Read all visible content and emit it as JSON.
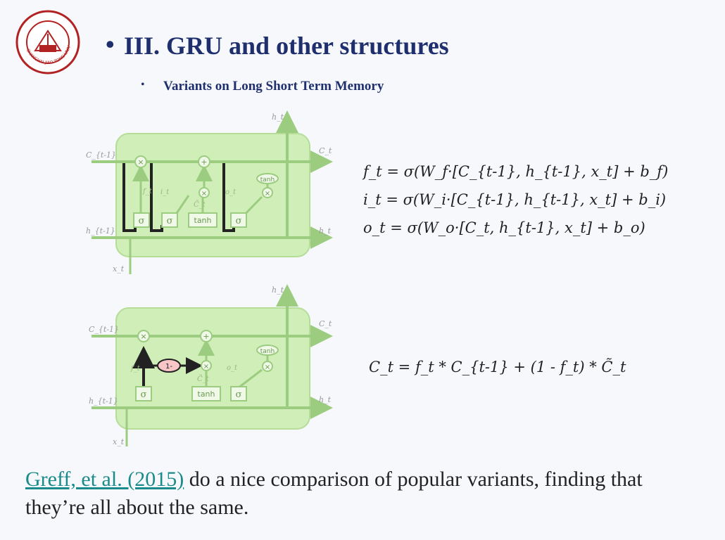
{
  "slide": {
    "title": "III. GRU and other structures",
    "bullet_1": "Variants on Long Short Term Memory",
    "title_bullet": "•",
    "sub_bullet": "•"
  },
  "logo": {
    "institution_text": "SHANGHAI JIAO TONG UNIVERSITY",
    "year_text": "1896"
  },
  "diagram_labels": {
    "c_prev": "C_{t-1}",
    "c_t": "C_t",
    "h_t": "h_t",
    "h_prev": "h_{t-1}",
    "x_t": "x_t",
    "f_t": "f_t",
    "i_t": "i_t",
    "o_t": "o_t",
    "c_tilde": "C̃_t",
    "sigma": "σ",
    "tanh": "tanh",
    "one_minus": "1-"
  },
  "equations": {
    "f": "f_t = σ(W_f·[C_{t-1}, h_{t-1}, x_t] + b_f)",
    "i": "i_t = σ(W_i·[C_{t-1}, h_{t-1}, x_t] + b_i)",
    "o": "o_t = σ(W_o·[C_t, h_{t-1}, x_t] + b_o)",
    "c": "C_t = f_t * C_{t-1} + (1 - f_t) * C̃_t"
  },
  "footer": {
    "link_text": "Greff, et al. (2015)",
    "rest_text": " do a nice comparison of popular variants, finding that they’re all about the same."
  },
  "colors": {
    "title": "#1f2f6e",
    "cell_fill": "#cfeeb8",
    "cell_line": "#9ccc80",
    "link": "#1a8a8a",
    "logo": "#b22222"
  }
}
